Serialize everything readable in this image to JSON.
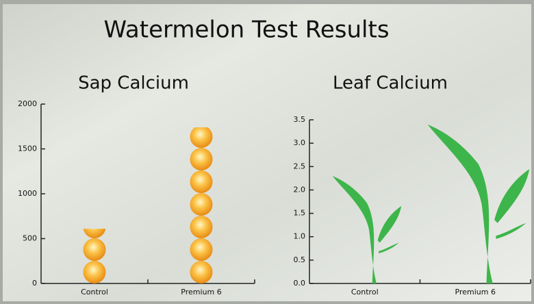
{
  "title": "Watermelon Test Results",
  "chart_data": [
    {
      "type": "bar",
      "icon": "sphere",
      "title": "Sap Calcium",
      "categories": [
        "Control",
        "Premium 6"
      ],
      "values": [
        610,
        1740
      ],
      "ylim": [
        0,
        2000
      ],
      "yticks": [
        0,
        500,
        1000,
        1500,
        2000
      ]
    },
    {
      "type": "bar",
      "icon": "plant",
      "title": "Leaf Calcium",
      "color": "#3db54a",
      "categories": [
        "Control",
        "Premium 6"
      ],
      "values": [
        2.3,
        3.4
      ],
      "ylim": [
        0,
        3.5
      ],
      "yticks": [
        {
          "value": 0,
          "label": "0.0"
        },
        0.5,
        {
          "value": 1,
          "label": "1.0"
        },
        1.5,
        {
          "value": 2,
          "label": "2.0"
        },
        2.5,
        {
          "value": 3,
          "label": "3.0"
        },
        3.5
      ]
    }
  ]
}
